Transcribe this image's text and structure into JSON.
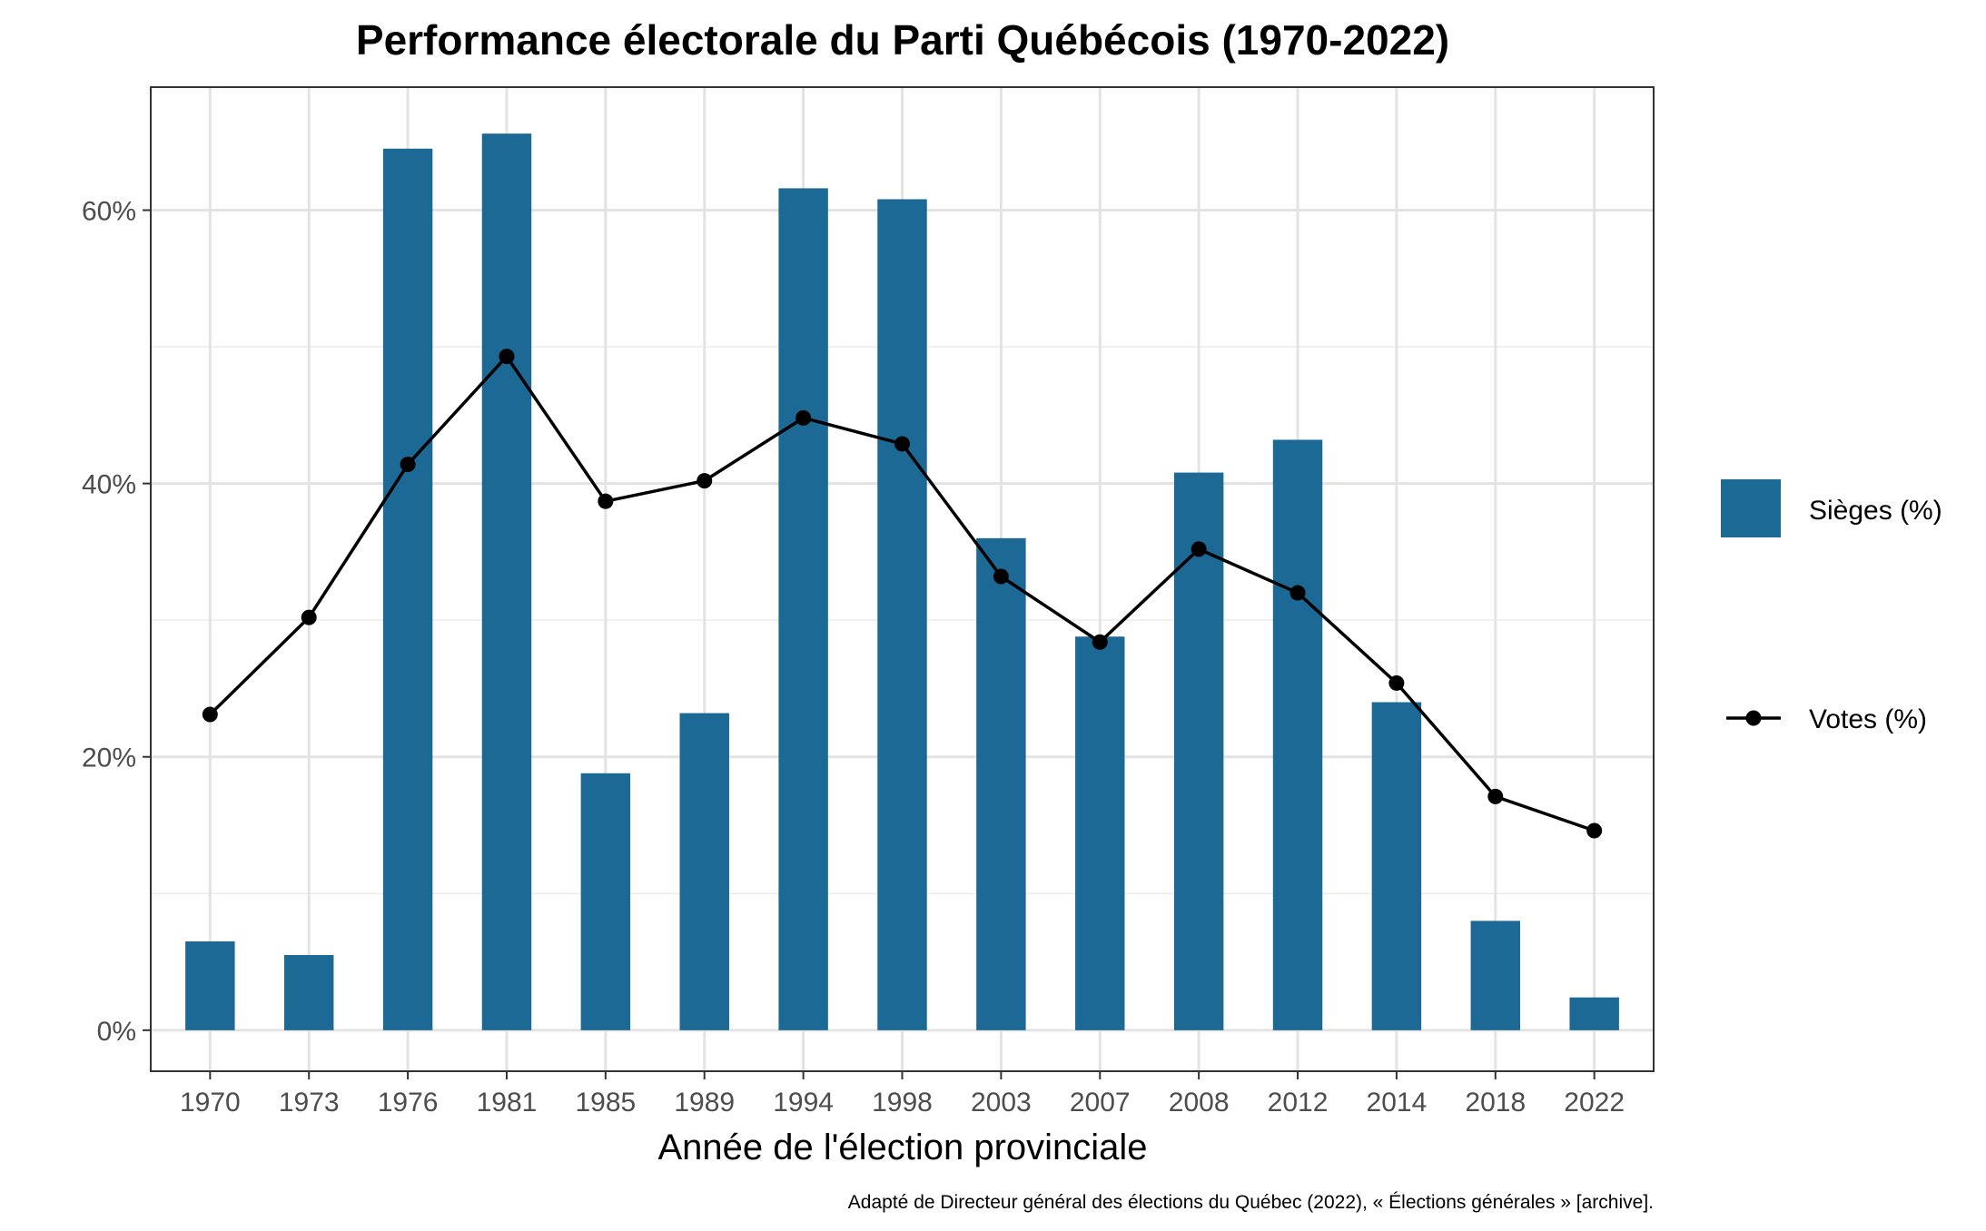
{
  "chart_data": {
    "type": "bar",
    "title": "Performance électorale du Parti Québécois (1970-2022)",
    "xlabel": "Année de l'élection provinciale",
    "ylabel": "",
    "caption": "Adapté de Directeur général des élections du Québec (2022), « Élections générales » [archive].",
    "categories": [
      "1970",
      "1973",
      "1976",
      "1981",
      "1985",
      "1989",
      "1994",
      "1998",
      "2003",
      "2007",
      "2008",
      "2012",
      "2014",
      "2018",
      "2022"
    ],
    "ylim": [
      -3,
      69
    ],
    "yticks": [
      0,
      20,
      40,
      60
    ],
    "ytick_labels": [
      "0%",
      "20%",
      "40%",
      "60%"
    ],
    "grid": true,
    "legend_position": "right",
    "series": [
      {
        "name": "Sièges (%)",
        "type": "bar",
        "color": "#1c6996",
        "values": [
          6.5,
          5.5,
          64.5,
          65.6,
          18.8,
          23.2,
          61.6,
          60.8,
          36.0,
          28.8,
          40.8,
          43.2,
          24.0,
          8.0,
          2.4
        ]
      },
      {
        "name": "Votes (%)",
        "type": "line",
        "color": "#000000",
        "values": [
          23.1,
          30.2,
          41.4,
          49.3,
          38.7,
          40.2,
          44.8,
          42.9,
          33.2,
          28.4,
          35.2,
          32.0,
          25.4,
          17.1,
          14.6
        ]
      }
    ]
  }
}
